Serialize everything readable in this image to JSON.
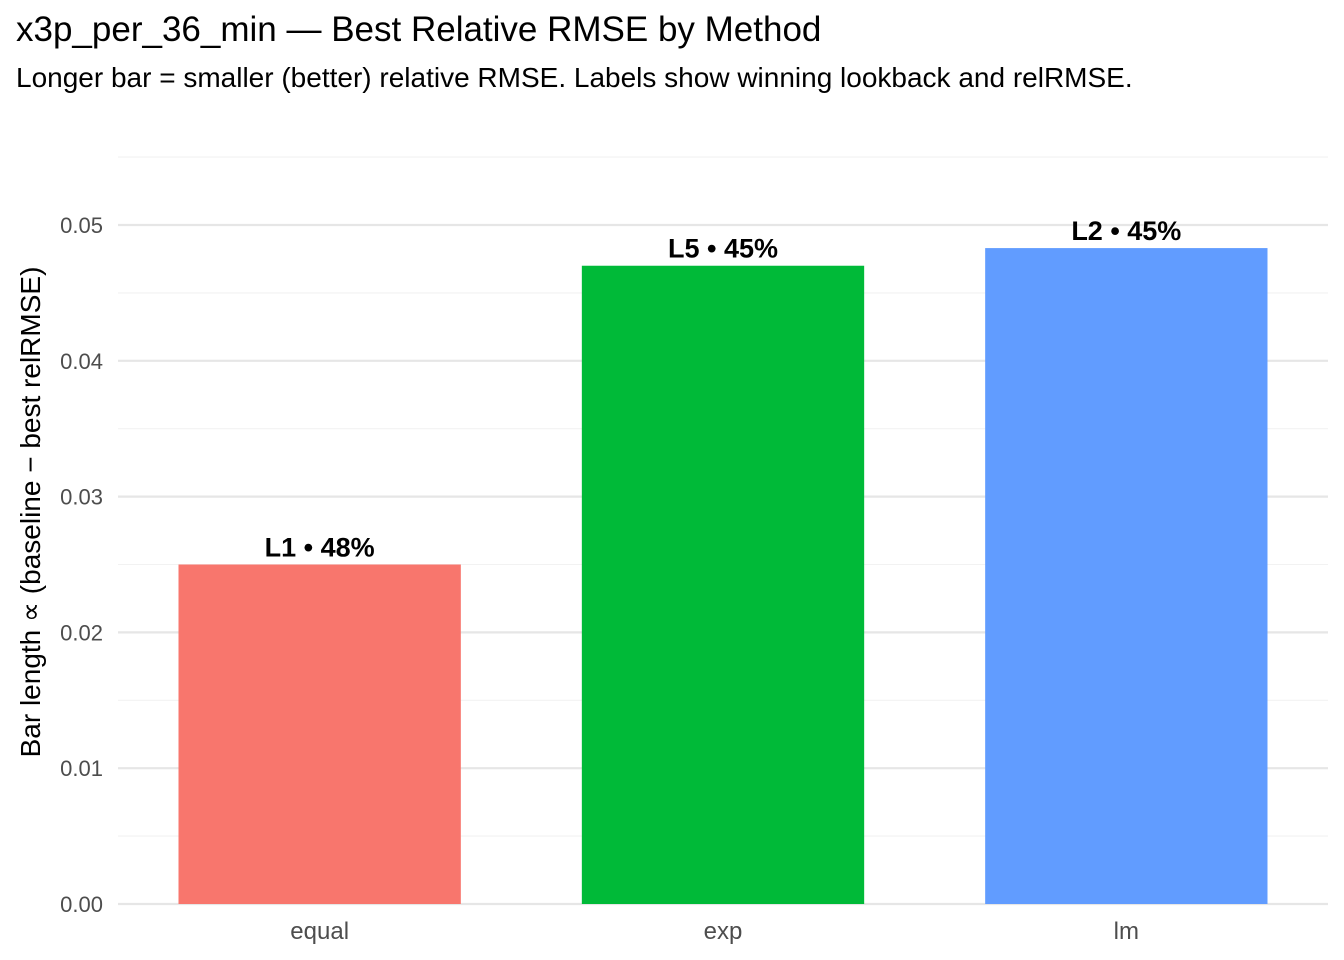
{
  "chart_data": {
    "type": "bar",
    "title": "x3p_per_36_min — Best Relative RMSE by Method",
    "subtitle": "Longer bar = smaller (better) relative RMSE. Labels show winning lookback and relRMSE.",
    "xlabel": "",
    "ylabel": "Bar length ∝ (baseline − best relRMSE)",
    "categories": [
      "equal",
      "exp",
      "lm"
    ],
    "values": [
      0.025,
      0.047,
      0.0483
    ],
    "bar_labels": [
      "L1 • 48%",
      "L5 • 45%",
      "L2 • 45%"
    ],
    "colors": [
      "#F8766D",
      "#00BA38",
      "#619CFF"
    ],
    "yticks": [
      "0.00",
      "0.01",
      "0.02",
      "0.03",
      "0.04",
      "0.05"
    ],
    "ylim": [
      0,
      0.055
    ],
    "grid": true,
    "legend": "none"
  }
}
